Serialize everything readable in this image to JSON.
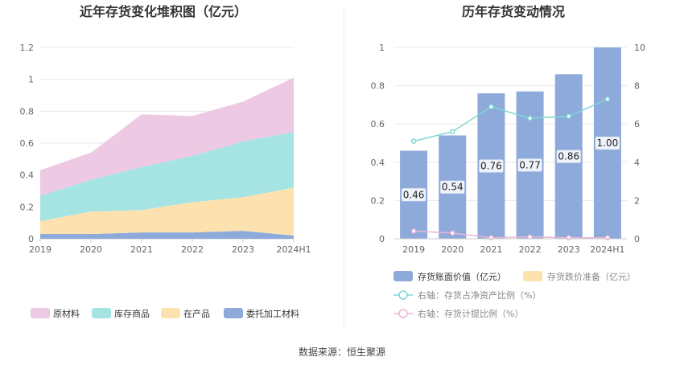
{
  "chart_data": [
    {
      "type": "area",
      "stacked": true,
      "title": "近年存货变化堆积图（亿元）",
      "categories": [
        "2019",
        "2020",
        "2021",
        "2022",
        "2023",
        "2024H1"
      ],
      "ylim": [
        0,
        1.2
      ],
      "yticks": [
        "0",
        "0.2",
        "0.4",
        "0.6",
        "0.8",
        "1",
        "1.2"
      ],
      "series": [
        {
          "name": "委托加工材料",
          "color": "#8eaadb",
          "values": [
            0.03,
            0.03,
            0.04,
            0.04,
            0.05,
            0.02
          ]
        },
        {
          "name": "在产品",
          "color": "#fde2b0",
          "values": [
            0.08,
            0.14,
            0.14,
            0.19,
            0.21,
            0.3
          ]
        },
        {
          "name": "库存商品",
          "color": "#a6e3e3",
          "values": [
            0.16,
            0.2,
            0.27,
            0.29,
            0.35,
            0.35
          ]
        },
        {
          "name": "原材料",
          "color": "#edc9e3",
          "values": [
            0.16,
            0.17,
            0.33,
            0.25,
            0.25,
            0.34
          ]
        }
      ],
      "legend": [
        "原材料",
        "库存商品",
        "在产品",
        "委托加工材料"
      ]
    },
    {
      "type": "bar",
      "title": "历年存货变动情况",
      "categories": [
        "2019",
        "2020",
        "2021",
        "2022",
        "2023",
        "2024H1"
      ],
      "ylim_left": [
        0,
        1
      ],
      "yticks_left": [
        "0",
        "0.2",
        "0.4",
        "0.6",
        "0.8",
        "1"
      ],
      "ylim_right": [
        0,
        10
      ],
      "yticks_right": [
        "0",
        "2",
        "4",
        "6",
        "8",
        "10"
      ],
      "bars": {
        "name": "存货账面价值（亿元）",
        "color": "#8eaadb",
        "values": [
          0.46,
          0.54,
          0.76,
          0.77,
          0.86,
          1.0
        ],
        "labels": [
          "0.46",
          "0.54",
          "0.76",
          "0.77",
          "0.86",
          "1.00"
        ]
      },
      "bars_secondary": {
        "name": "存货跌价准备（亿元）",
        "color": "#fde2b0",
        "values": [
          0,
          0,
          0,
          0,
          0,
          0
        ]
      },
      "lines": [
        {
          "name": "右轴：存货占净资产比例（%）",
          "color": "#7fd6d6",
          "values": [
            5.1,
            5.6,
            6.9,
            6.3,
            6.4,
            7.3
          ]
        },
        {
          "name": "右轴：存货计提比例（%）",
          "color": "#e7b6d8",
          "values": [
            0.4,
            0.3,
            0.05,
            0.1,
            0.05,
            0.05
          ]
        }
      ]
    }
  ],
  "footer": {
    "source": "数据来源：恒生聚源"
  }
}
